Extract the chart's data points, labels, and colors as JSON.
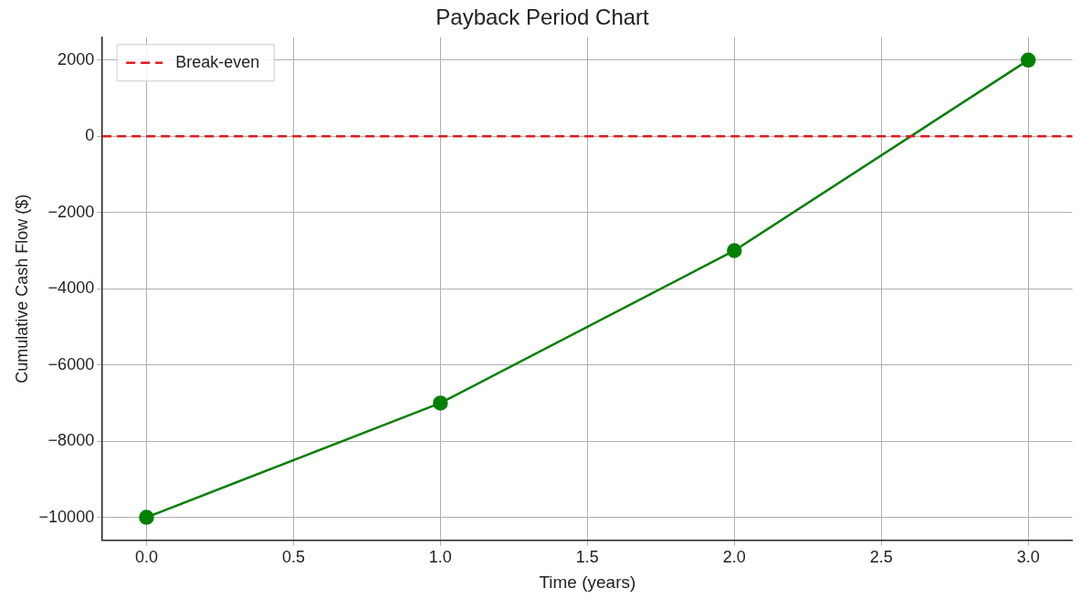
{
  "chart_data": {
    "type": "line",
    "title": "Payback Period Chart",
    "xlabel": "Time (years)",
    "ylabel": "Cumulative Cash Flow ($)",
    "x": [
      0,
      1,
      2,
      3
    ],
    "series": [
      {
        "color": "#008000",
        "values": [
          -10000,
          -7000,
          -3000,
          2000
        ]
      }
    ],
    "xlim": [
      -0.15,
      3.15
    ],
    "xticks": [
      {
        "value": 0,
        "label": "0.0"
      },
      {
        "value": 0.5,
        "label": "0.5"
      },
      {
        "value": 1,
        "label": "1.0"
      },
      {
        "value": 1.5,
        "label": "1.5"
      },
      {
        "value": 2,
        "label": "2.0"
      },
      {
        "value": 2.5,
        "label": "2.5"
      },
      {
        "value": 3,
        "label": "3.0"
      }
    ],
    "ylim": [
      -10600,
      2600
    ],
    "yticks": [
      {
        "value": -10000,
        "label": "−10000"
      },
      {
        "value": -8000,
        "label": "−8000"
      },
      {
        "value": -6000,
        "label": "−6000"
      },
      {
        "value": -4000,
        "label": "−4000"
      },
      {
        "value": -2000,
        "label": "−2000"
      },
      0,
      2000
    ],
    "ref_lines": [
      {
        "axis": "y",
        "value": 0,
        "label": "Break-even",
        "color": "#e31a1c",
        "line_style": "dashed"
      }
    ],
    "grid": true,
    "legend": "top left",
    "marker": "circle",
    "line_style": "solid"
  }
}
